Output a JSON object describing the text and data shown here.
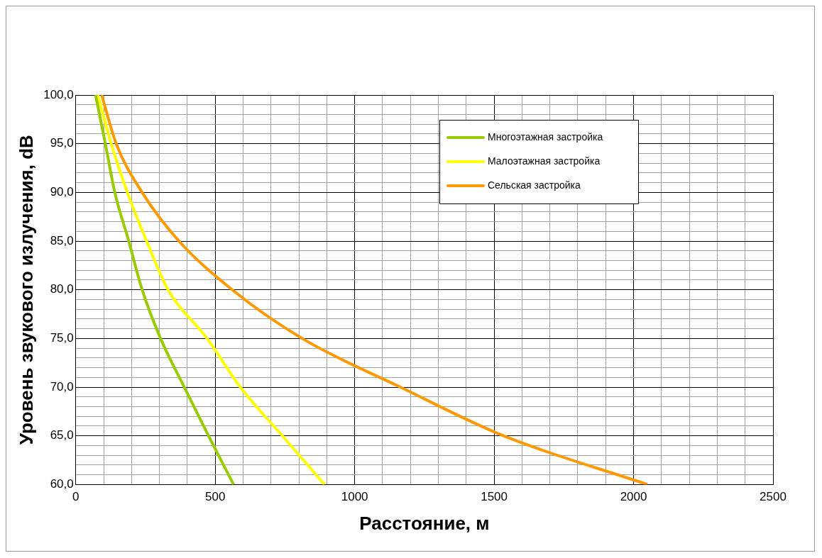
{
  "chart_data": {
    "type": "line",
    "xlabel": "Расстояние, м",
    "ylabel": "Уровень звукового излучения, dB",
    "xlim": [
      0,
      2500
    ],
    "ylim": [
      60,
      100
    ],
    "xticks": [
      0,
      {
        "value": 100,
        "label": null
      },
      {
        "value": 200,
        "label": null
      },
      {
        "value": 300,
        "label": null
      },
      {
        "value": 400,
        "label": null
      },
      500,
      {
        "value": 600,
        "label": null
      },
      {
        "value": 700,
        "label": null
      },
      {
        "value": 800,
        "label": null
      },
      {
        "value": 900,
        "label": null
      },
      1000,
      {
        "value": 1100,
        "label": null
      },
      {
        "value": 1200,
        "label": null
      },
      {
        "value": 1300,
        "label": null
      },
      {
        "value": 1400,
        "label": null
      },
      1500,
      {
        "value": 1600,
        "label": null
      },
      {
        "value": 1700,
        "label": null
      },
      {
        "value": 1800,
        "label": null
      },
      {
        "value": 1900,
        "label": null
      },
      2000,
      {
        "value": 2100,
        "label": null
      },
      {
        "value": 2200,
        "label": null
      },
      {
        "value": 2300,
        "label": null
      },
      {
        "value": 2400,
        "label": null
      },
      2500
    ],
    "yticks": [
      {
        "value": 60,
        "label": "60,0"
      },
      {
        "value": 61,
        "label": null
      },
      {
        "value": 62,
        "label": null
      },
      {
        "value": 63,
        "label": null
      },
      {
        "value": 64,
        "label": null
      },
      {
        "value": 65,
        "label": "65,0"
      },
      {
        "value": 66,
        "label": null
      },
      {
        "value": 67,
        "label": null
      },
      {
        "value": 68,
        "label": null
      },
      {
        "value": 69,
        "label": null
      },
      {
        "value": 70,
        "label": "70,0"
      },
      {
        "value": 71,
        "label": null
      },
      {
        "value": 72,
        "label": null
      },
      {
        "value": 73,
        "label": null
      },
      {
        "value": 74,
        "label": null
      },
      {
        "value": 75,
        "label": "75,0"
      },
      {
        "value": 76,
        "label": null
      },
      {
        "value": 77,
        "label": null
      },
      {
        "value": 78,
        "label": null
      },
      {
        "value": 79,
        "label": null
      },
      {
        "value": 80,
        "label": "80,0"
      },
      {
        "value": 81,
        "label": null
      },
      {
        "value": 82,
        "label": null
      },
      {
        "value": 83,
        "label": null
      },
      {
        "value": 84,
        "label": null
      },
      {
        "value": 85,
        "label": "85,0"
      },
      {
        "value": 86,
        "label": null
      },
      {
        "value": 87,
        "label": null
      },
      {
        "value": 88,
        "label": null
      },
      {
        "value": 89,
        "label": null
      },
      {
        "value": 90,
        "label": "90,0"
      },
      {
        "value": 91,
        "label": null
      },
      {
        "value": 92,
        "label": null
      },
      {
        "value": 93,
        "label": null
      },
      {
        "value": 94,
        "label": null
      },
      {
        "value": 95,
        "label": "95,0"
      },
      {
        "value": 96,
        "label": null
      },
      {
        "value": 97,
        "label": null
      },
      {
        "value": 98,
        "label": null
      },
      {
        "value": 99,
        "label": null
      },
      {
        "value": 100,
        "label": "100,0"
      }
    ],
    "grid": true,
    "legend": "top right",
    "marker": "none",
    "line_style": "solid",
    "series": [
      {
        "name": "Многоэтажная застройка",
        "color": "#99cc00",
        "x": [
          71,
          106,
          140,
          190,
          238,
          304,
          389,
          476,
          566
        ],
        "values": [
          100,
          95,
          90,
          85,
          80,
          75,
          70,
          65,
          60
        ]
      },
      {
        "name": "Малоэтажная застройка",
        "color": "#ffff00",
        "x": [
          79,
          127,
          185,
          254,
          331,
          471,
          590,
          741,
          892
        ],
        "values": [
          100,
          95,
          90,
          85,
          80,
          75,
          70,
          65,
          60
        ]
      },
      {
        "name": "Сельская застройка",
        "color": "#ff9900",
        "x": [
          93,
          145,
          238,
          370,
          561,
          812,
          1164,
          1534,
          2050
        ],
        "values": [
          100,
          95,
          90,
          85,
          80,
          75,
          70,
          65,
          60
        ]
      }
    ]
  }
}
